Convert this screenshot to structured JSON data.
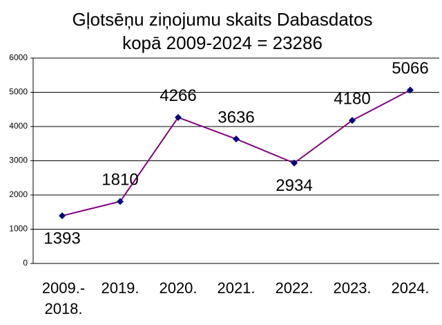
{
  "chart_data": {
    "type": "line",
    "title": "Gļotsēņu ziņojumu skaits Dabasdatos",
    "subtitle": "kopā 2009-2024 = 23286",
    "categories": [
      "2009.- 2018.",
      "2019.",
      "2020.",
      "2021.",
      "2022.",
      "2023.",
      "2024."
    ],
    "series": [
      {
        "color": "#800080",
        "marker_color": "#000080",
        "values": [
          1393,
          1810,
          4266,
          3636,
          2934,
          4180,
          5066
        ]
      }
    ],
    "ylim": [
      0,
      6000
    ],
    "yticks": [
      0,
      1000,
      2000,
      3000,
      4000,
      5000,
      6000
    ],
    "grid": true
  }
}
